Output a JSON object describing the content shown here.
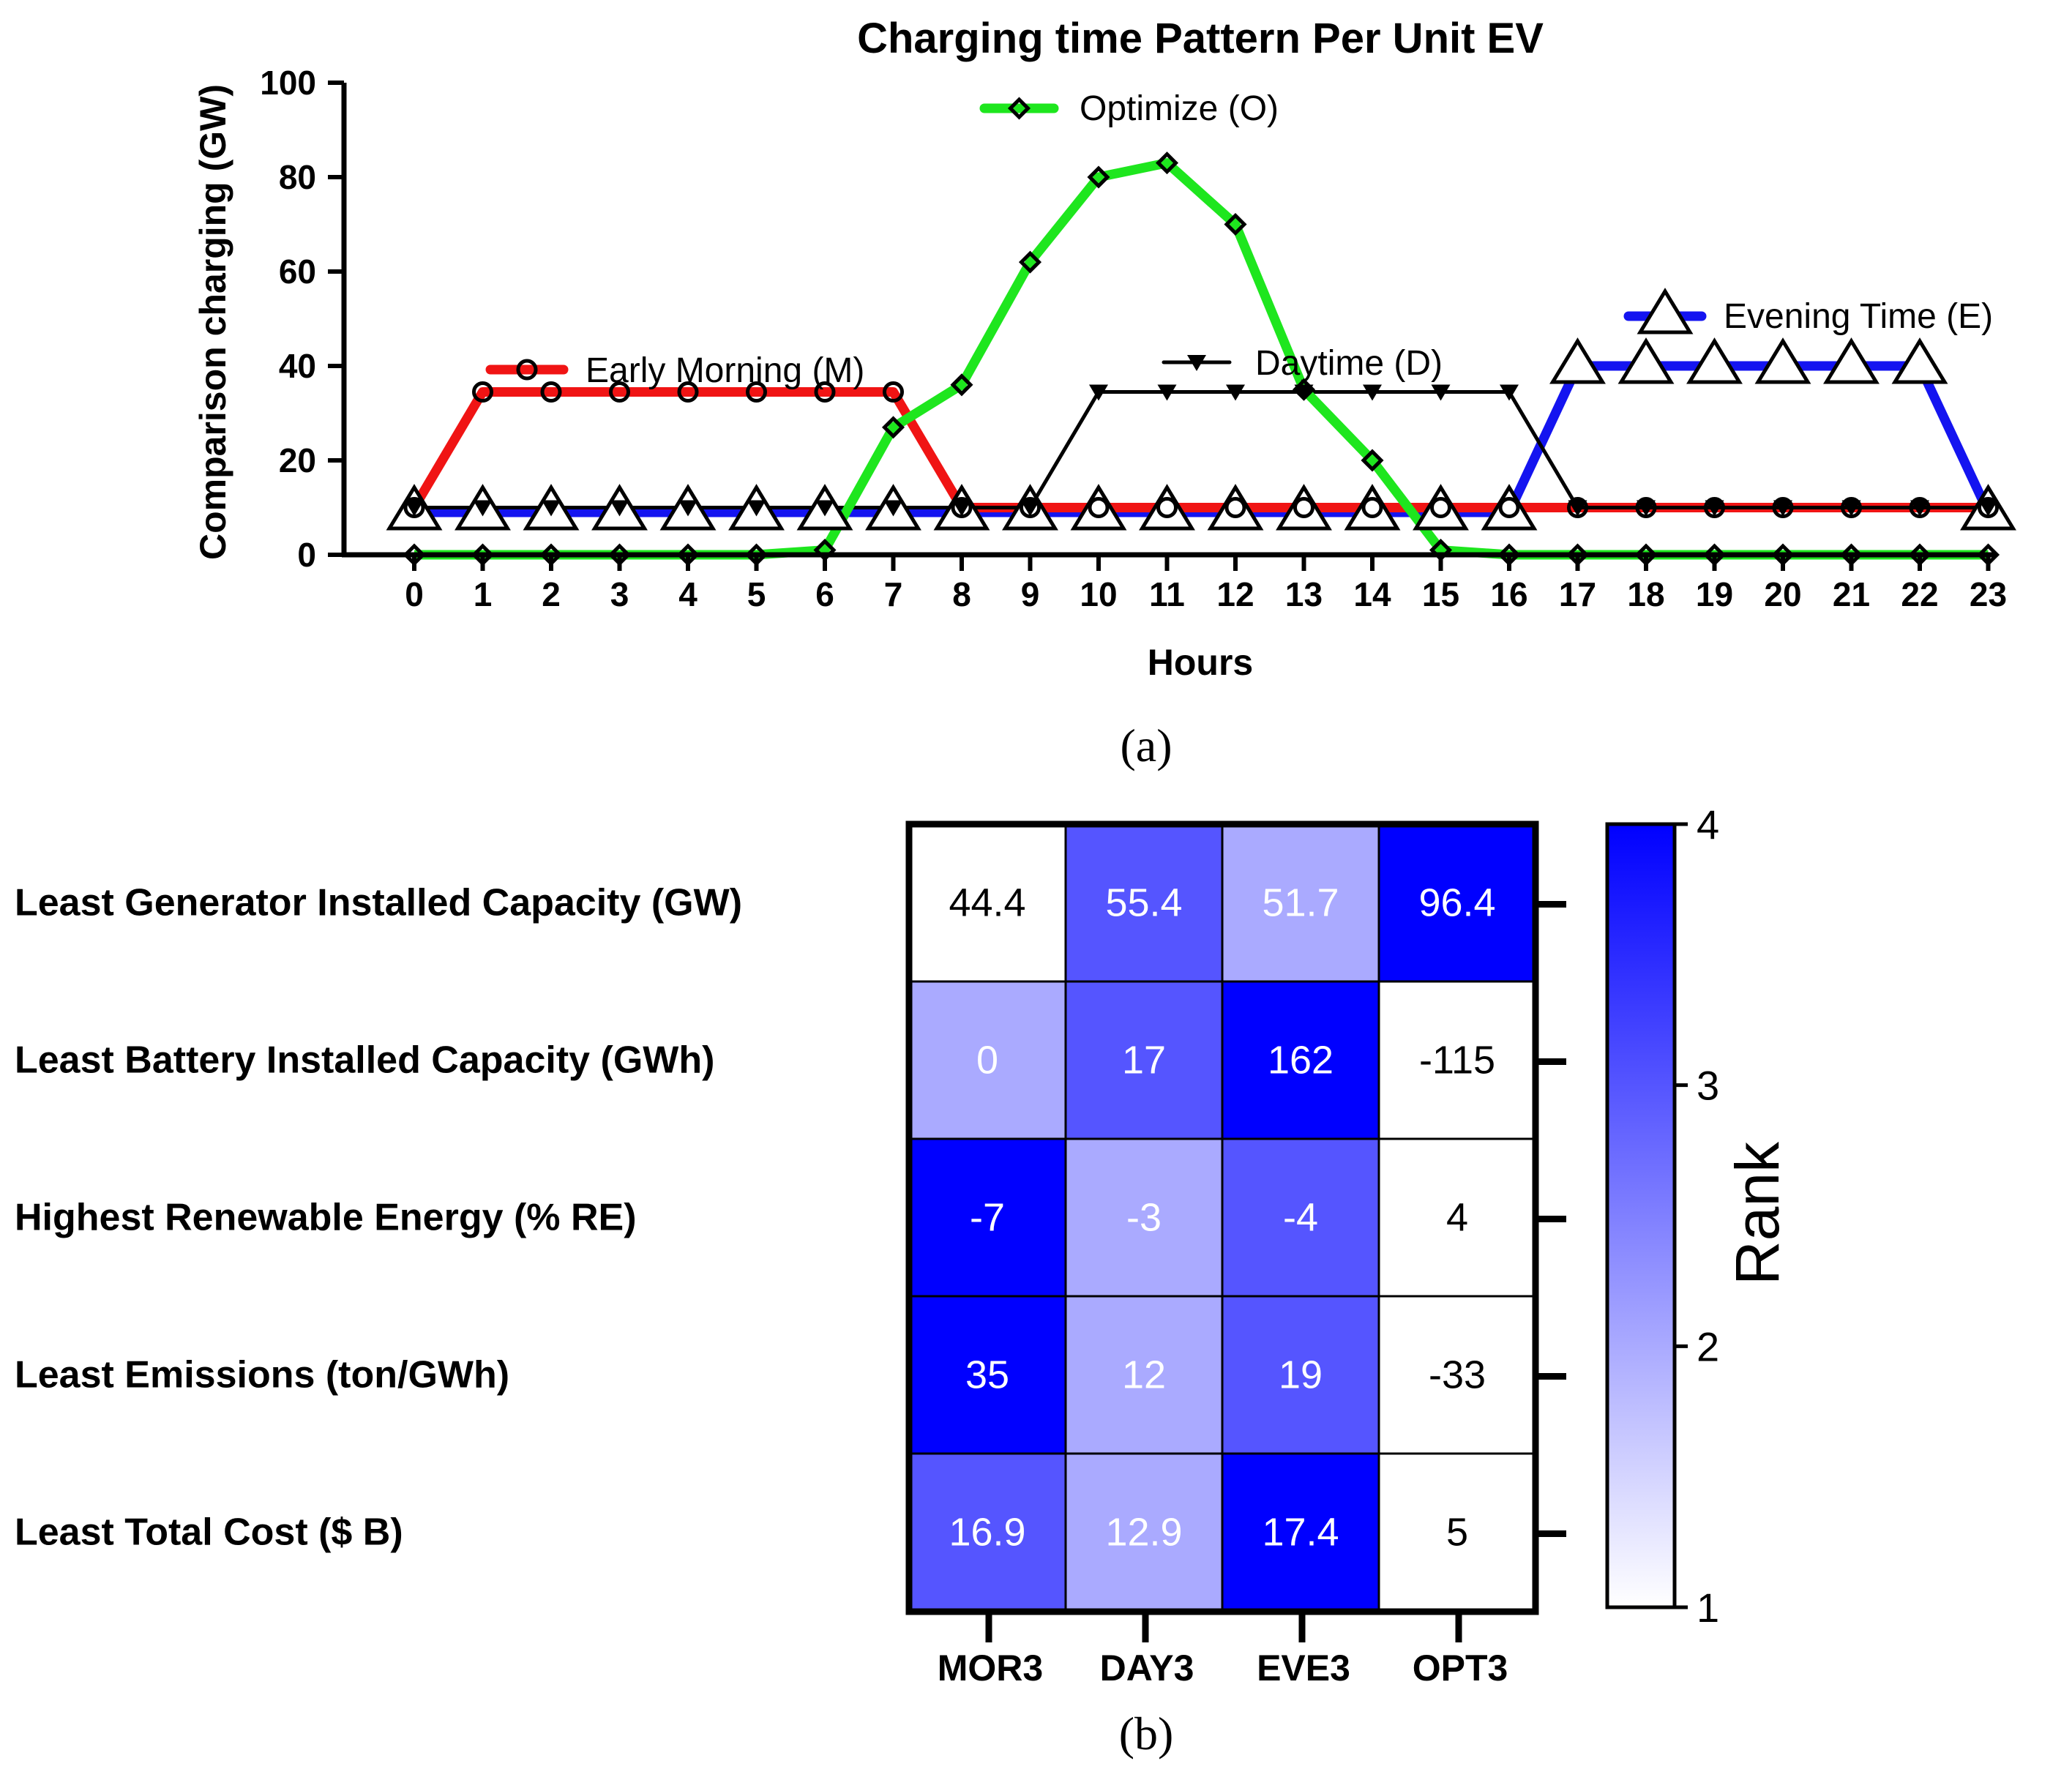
{
  "panel_a_label": "(a)",
  "panel_b_label": "(b)",
  "chart_data": [
    {
      "type": "line",
      "title": "Charging time Pattern Per Unit EV",
      "xlabel": "Hours",
      "ylabel": "Comparison charging  (GW)",
      "ylim": [
        0,
        100
      ],
      "yticks": [
        "0",
        "20",
        "40",
        "60",
        "80",
        "100"
      ],
      "x": [
        0,
        1,
        2,
        3,
        4,
        5,
        6,
        7,
        8,
        9,
        10,
        11,
        12,
        13,
        14,
        15,
        16,
        17,
        18,
        19,
        20,
        21,
        22,
        23
      ],
      "xtick_labels": [
        "0",
        "1",
        "2",
        "3",
        "4",
        "5",
        "6",
        "7",
        "8",
        "9",
        "10",
        "11",
        "12",
        "13",
        "14",
        "15",
        "16",
        "17",
        "18",
        "19",
        "20",
        "21",
        "22",
        "23"
      ],
      "series": [
        {
          "name": "Early Morning (M)",
          "legend": "Early Morning (M)",
          "color": "#f01414",
          "marker": "circle",
          "values": [
            10,
            34.5,
            34.5,
            34.5,
            34.5,
            34.5,
            34.5,
            34.5,
            10,
            10,
            10,
            10,
            10,
            10,
            10,
            10,
            10,
            10,
            10,
            10,
            10,
            10,
            10,
            10
          ]
        },
        {
          "name": "Daytime (D)",
          "legend": "Daytime (D)",
          "color": "#000000",
          "marker": "triangle-down",
          "values": [
            10,
            10,
            10,
            10,
            10,
            10,
            10,
            10,
            10,
            10,
            34.5,
            34.5,
            34.5,
            34.5,
            34.5,
            34.5,
            34.5,
            10,
            10,
            10,
            10,
            10,
            10,
            10
          ]
        },
        {
          "name": "Evening Time (E)",
          "legend": "Evening Time (E)",
          "color": "#1414f0",
          "marker": "triangle-open",
          "values": [
            9,
            9,
            9,
            9,
            9,
            9,
            9,
            9,
            9,
            9,
            9,
            9,
            9,
            9,
            9,
            9,
            9,
            40,
            40,
            40,
            40,
            40,
            40,
            9
          ]
        },
        {
          "name": "Optimize (O)",
          "legend": "Optimize (O)",
          "color": "#1ee61e",
          "marker": "diamond",
          "values": [
            0,
            0,
            0,
            0,
            0,
            0,
            1,
            27,
            36,
            62,
            80,
            83,
            70,
            35,
            20,
            1,
            0,
            0,
            0,
            0,
            0,
            0,
            0,
            0
          ]
        }
      ]
    },
    {
      "type": "heatmap",
      "rows": [
        "Least Generator Installed Capacity (GW)",
        "Least Battery Installed Capacity (GWh)",
        "Highest Renewable Energy (% RE)",
        "Least Emissions (ton/GWh)",
        "Least Total Cost ($ B)"
      ],
      "columns": [
        "MOR3",
        "DAY3",
        "EVE3",
        "OPT3"
      ],
      "cell_labels": [
        [
          "44.4",
          "55.4",
          "51.7",
          "96.4"
        ],
        [
          "0",
          "17",
          "162",
          "-115"
        ],
        [
          "-7",
          "-3",
          "-4",
          "4"
        ],
        [
          "35",
          "12",
          "19",
          "-33"
        ],
        [
          "16.9",
          "12.9",
          "17.4",
          "5"
        ]
      ],
      "ranks": [
        [
          1,
          3,
          2,
          4
        ],
        [
          2,
          3,
          4,
          1
        ],
        [
          4,
          2,
          3,
          1
        ],
        [
          4,
          2,
          3,
          1
        ],
        [
          3,
          2,
          4,
          1
        ]
      ],
      "colorbar": {
        "label": "Rank",
        "min": 1,
        "max": 4,
        "ticks": [
          "1",
          "2",
          "3",
          "4"
        ],
        "color_low": "#ffffff",
        "color_high": "#0000ff"
      }
    }
  ]
}
